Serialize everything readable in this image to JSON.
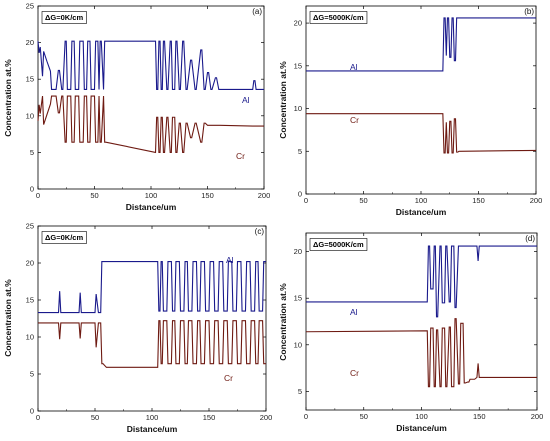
{
  "chart_data": [
    {
      "id": "a",
      "type": "line",
      "panel_label": "(a)",
      "delta_g_label": "ΔG=0K/cm",
      "xlabel": "Distance/um",
      "ylabel": "Concentration at.%",
      "xlim": [
        0,
        200
      ],
      "ylim": [
        0,
        25
      ],
      "xticks": [
        "0",
        "50",
        "100",
        "150",
        "200"
      ],
      "yticks": [
        "0",
        "5",
        "10",
        "15",
        "20",
        "25"
      ],
      "series": [
        {
          "name": "Al",
          "color": "#1a1a8c",
          "x": [
            0,
            1,
            2,
            4,
            5,
            8,
            11,
            12,
            16,
            18,
            19,
            21,
            22,
            24,
            25,
            26,
            29,
            30,
            32,
            33,
            36,
            37,
            40,
            41,
            43,
            44,
            46,
            47,
            50,
            51,
            53,
            54,
            55,
            56,
            58,
            59,
            60,
            104,
            105,
            106,
            107,
            108,
            109,
            110,
            111,
            112,
            114,
            115,
            117,
            118,
            119,
            121,
            122,
            123,
            125,
            126,
            128,
            129,
            131,
            132,
            135,
            136,
            139,
            140,
            144,
            145,
            147,
            148,
            150,
            151,
            153,
            154,
            157,
            158,
            160,
            161,
            190,
            191,
            192,
            193,
            200
          ],
          "y": [
            20.2,
            18.6,
            19.4,
            15.4,
            18.8,
            17.4,
            16.1,
            13.6,
            13.6,
            16.2,
            16.2,
            13.6,
            13.6,
            20.2,
            20.2,
            13.6,
            13.6,
            20.2,
            20.2,
            13.6,
            13.6,
            20.2,
            20.2,
            13.6,
            13.6,
            20.2,
            20.2,
            13.6,
            13.6,
            20.2,
            20.2,
            13.6,
            20.2,
            20.2,
            13.6,
            20.2,
            20.2,
            20.2,
            13.6,
            13.6,
            20.2,
            20.2,
            13.6,
            13.6,
            20.2,
            20.2,
            13.6,
            13.6,
            20.2,
            20.2,
            13.6,
            13.6,
            20.2,
            20.2,
            13.6,
            13.6,
            20.2,
            20.2,
            13.6,
            13.6,
            17.6,
            17.6,
            13.6,
            13.6,
            19.0,
            19.0,
            13.6,
            13.6,
            15.9,
            15.9,
            13.6,
            13.6,
            15.2,
            15.2,
            13.6,
            13.6,
            13.6,
            14.8,
            14.8,
            13.6,
            13.6
          ]
        },
        {
          "name": "Cr",
          "color": "#6e1a12",
          "x": [
            0,
            1,
            2,
            4,
            5,
            8,
            11,
            12,
            16,
            18,
            19,
            21,
            22,
            24,
            25,
            26,
            29,
            30,
            32,
            33,
            36,
            37,
            40,
            41,
            43,
            44,
            46,
            47,
            50,
            51,
            53,
            54,
            55,
            56,
            58,
            59,
            60,
            104,
            105,
            106,
            107,
            108,
            109,
            110,
            111,
            112,
            114,
            115,
            117,
            118,
            119,
            121,
            122,
            123,
            125,
            126,
            128,
            129,
            131,
            132,
            135,
            136,
            139,
            140,
            144,
            145,
            147,
            148,
            150,
            151,
            153,
            154,
            157,
            158,
            160,
            161,
            190,
            191,
            192,
            193,
            200
          ],
          "y": [
            9.3,
            11.5,
            10.3,
            12.7,
            8.8,
            10.2,
            11.6,
            12.7,
            12.7,
            10.4,
            10.4,
            12.7,
            12.7,
            6.4,
            6.4,
            12.7,
            12.7,
            6.4,
            6.4,
            12.7,
            12.7,
            6.4,
            6.4,
            12.7,
            12.7,
            6.4,
            6.4,
            12.7,
            12.7,
            6.4,
            6.4,
            12.7,
            6.4,
            6.4,
            12.7,
            6.4,
            6.4,
            5.0,
            9.8,
            9.8,
            5.0,
            5.0,
            9.8,
            9.8,
            5.0,
            5.0,
            9.8,
            9.8,
            5.0,
            5.0,
            9.8,
            9.8,
            5.0,
            5.0,
            9.0,
            9.0,
            5.0,
            5.0,
            9.0,
            9.0,
            7.0,
            7.0,
            9.0,
            9.0,
            6.4,
            6.4,
            9.0,
            9.0,
            8.7,
            8.7,
            8.7,
            8.7,
            8.7,
            8.7,
            8.7,
            8.7,
            8.6,
            8.6,
            8.6,
            8.6,
            8.6
          ]
        }
      ]
    },
    {
      "id": "b",
      "type": "line",
      "panel_label": "(b)",
      "delta_g_label": "ΔG=5000K/cm",
      "xlabel": "Distance/um",
      "ylabel": "Concentration at.%",
      "xlim": [
        0,
        200
      ],
      "ylim": [
        0,
        22
      ],
      "xticks": [
        "0",
        "50",
        "100",
        "150",
        "200"
      ],
      "yticks": [
        "0",
        "5",
        "10",
        "15",
        "20"
      ],
      "series": [
        {
          "name": "Al",
          "color": "#1a1a8c",
          "x": [
            0,
            119,
            120,
            121,
            122,
            123,
            124,
            125,
            126,
            127,
            128,
            129,
            130,
            131,
            132,
            133,
            200
          ],
          "y": [
            14.4,
            14.4,
            20.6,
            20.6,
            16.2,
            20.6,
            20.6,
            16.0,
            16.0,
            20.6,
            20.6,
            15.6,
            15.6,
            20.6,
            20.6,
            20.6,
            20.6
          ]
        },
        {
          "name": "Cr",
          "color": "#6e1a12",
          "x": [
            0,
            119,
            120,
            121,
            122,
            123,
            124,
            125,
            126,
            127,
            128,
            129,
            130,
            131,
            132,
            133,
            200
          ],
          "y": [
            9.4,
            9.4,
            4.8,
            4.8,
            8.4,
            4.8,
            4.8,
            8.5,
            8.5,
            4.8,
            4.8,
            8.8,
            8.8,
            4.9,
            4.9,
            5.0,
            5.1
          ]
        }
      ]
    },
    {
      "id": "c",
      "type": "line",
      "panel_label": "(c)",
      "delta_g_label": "ΔG=0K/cm",
      "xlabel": "Distance/um",
      "ylabel": "Concentration at.%",
      "xlim": [
        0,
        200
      ],
      "ylim": [
        0,
        25
      ],
      "xticks": [
        "0",
        "50",
        "100",
        "150",
        "200"
      ],
      "yticks": [
        "0",
        "5",
        "10",
        "15",
        "20",
        "25"
      ],
      "series": [
        {
          "name": "Al",
          "color": "#1a1a8c",
          "x": [
            0,
            18,
            19,
            20,
            36,
            37,
            38,
            50,
            51,
            53,
            55,
            56,
            57,
            60,
            105,
            106,
            107,
            108,
            109,
            110,
            113,
            114,
            117,
            118,
            120,
            121,
            124,
            125,
            128,
            129,
            131,
            132,
            135,
            136,
            139,
            140,
            142,
            143,
            146,
            147,
            150,
            151,
            154,
            155,
            158,
            159,
            162,
            163,
            166,
            167,
            170,
            171,
            174,
            175,
            178,
            179,
            182,
            183,
            186,
            187,
            190,
            191,
            193,
            194,
            197,
            198,
            200
          ],
          "y": [
            13.3,
            13.3,
            16.2,
            13.3,
            13.3,
            16.0,
            13.3,
            13.3,
            15.8,
            13.3,
            13.3,
            20.2,
            20.2,
            20.2,
            20.2,
            13.5,
            13.5,
            20.2,
            20.2,
            13.5,
            13.5,
            20.2,
            20.2,
            13.5,
            13.5,
            20.2,
            20.2,
            13.5,
            13.5,
            20.2,
            20.2,
            13.5,
            13.5,
            20.2,
            20.2,
            13.5,
            13.5,
            20.2,
            20.2,
            13.5,
            13.5,
            20.2,
            20.2,
            13.5,
            13.5,
            20.2,
            20.2,
            13.5,
            13.5,
            20.2,
            20.2,
            13.5,
            13.5,
            20.2,
            20.2,
            13.5,
            13.5,
            20.2,
            20.2,
            13.5,
            13.5,
            20.2,
            20.2,
            13.5,
            13.5,
            20.2,
            20.2
          ]
        },
        {
          "name": "Cr",
          "color": "#6e1a12",
          "x": [
            0,
            18,
            19,
            20,
            36,
            37,
            38,
            50,
            51,
            53,
            55,
            56,
            57,
            60,
            105,
            106,
            107,
            108,
            109,
            110,
            113,
            114,
            117,
            118,
            120,
            121,
            124,
            125,
            128,
            129,
            131,
            132,
            135,
            136,
            139,
            140,
            142,
            143,
            146,
            147,
            150,
            151,
            154,
            155,
            158,
            159,
            162,
            163,
            166,
            167,
            170,
            171,
            174,
            175,
            178,
            179,
            182,
            183,
            186,
            187,
            190,
            191,
            193,
            194,
            197,
            198,
            200
          ],
          "y": [
            11.9,
            11.9,
            9.7,
            11.9,
            11.9,
            9.8,
            11.9,
            11.9,
            8.6,
            11.9,
            11.9,
            6.4,
            6.4,
            5.9,
            5.9,
            12.2,
            12.2,
            6.4,
            6.4,
            12.2,
            12.2,
            6.4,
            6.4,
            12.2,
            12.2,
            6.4,
            6.4,
            12.2,
            12.2,
            6.4,
            6.4,
            12.2,
            12.2,
            6.4,
            6.4,
            12.2,
            12.2,
            6.4,
            6.4,
            12.2,
            12.2,
            6.4,
            6.4,
            12.2,
            12.2,
            6.4,
            6.4,
            12.2,
            12.2,
            6.4,
            6.4,
            12.2,
            12.2,
            6.4,
            6.4,
            12.2,
            12.2,
            6.4,
            6.4,
            12.2,
            12.2,
            6.4,
            6.4,
            12.2,
            12.2,
            6.4,
            6.4
          ]
        }
      ]
    },
    {
      "id": "d",
      "type": "line",
      "panel_label": "(d)",
      "delta_g_label": "ΔG=5000K/cm",
      "xlabel": "Distance/um",
      "ylabel": "Concentration at.%",
      "xlim": [
        0,
        200
      ],
      "ylim": [
        3,
        22
      ],
      "xticks": [
        "0",
        "50",
        "100",
        "150",
        "200"
      ],
      "yticks": [
        "5",
        "10",
        "15",
        "20"
      ],
      "series": [
        {
          "name": "Al",
          "color": "#1a1a8c",
          "x": [
            0,
            105,
            106,
            107,
            108,
            110,
            111,
            112,
            113,
            114,
            116,
            117,
            118,
            120,
            121,
            122,
            124,
            125,
            126,
            128,
            129,
            130,
            132,
            133,
            134,
            136,
            137,
            138,
            140,
            141,
            142,
            144,
            145,
            146,
            148,
            149,
            150,
            151,
            200
          ],
          "y": [
            14.6,
            14.6,
            20.6,
            20.6,
            16.0,
            16.0,
            20.6,
            20.6,
            13.0,
            13.0,
            20.6,
            20.6,
            14.5,
            14.5,
            20.6,
            20.6,
            14.6,
            14.6,
            20.6,
            20.6,
            14.0,
            14.0,
            20.6,
            20.6,
            20.6,
            20.6,
            20.6,
            20.6,
            20.6,
            20.6,
            20.6,
            20.6,
            20.6,
            20.6,
            20.6,
            19.0,
            20.6,
            20.6,
            20.6
          ]
        },
        {
          "name": "Cr",
          "color": "#6e1a12",
          "x": [
            0,
            105,
            106,
            107,
            108,
            110,
            111,
            112,
            113,
            114,
            116,
            117,
            118,
            120,
            121,
            122,
            124,
            125,
            126,
            128,
            129,
            130,
            132,
            133,
            134,
            136,
            137,
            138,
            140,
            141,
            142,
            144,
            145,
            146,
            148,
            149,
            150,
            151,
            200
          ],
          "y": [
            11.4,
            11.5,
            5.5,
            5.5,
            11.8,
            11.8,
            5.5,
            5.5,
            11.6,
            11.6,
            5.5,
            5.5,
            11.8,
            11.8,
            5.5,
            5.5,
            11.9,
            11.9,
            5.5,
            5.5,
            12.8,
            12.8,
            5.8,
            5.8,
            12.3,
            12.3,
            5.9,
            5.9,
            6.0,
            6.0,
            6.3,
            6.3,
            6.3,
            6.3,
            6.5,
            8.0,
            6.5,
            6.5,
            6.5
          ]
        }
      ]
    }
  ]
}
